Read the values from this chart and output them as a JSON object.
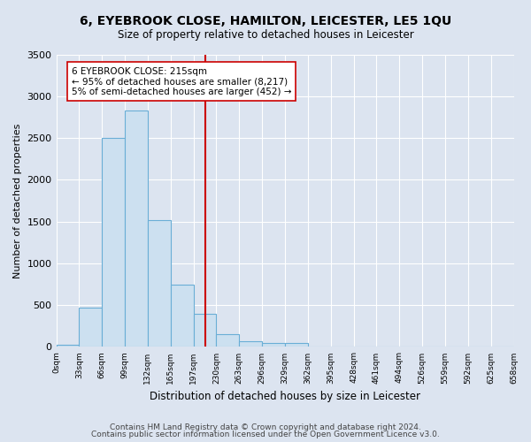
{
  "title": "6, EYEBROOK CLOSE, HAMILTON, LEICESTER, LE5 1QU",
  "subtitle": "Size of property relative to detached houses in Leicester",
  "xlabel": "Distribution of detached houses by size in Leicester",
  "ylabel": "Number of detached properties",
  "footer_line1": "Contains HM Land Registry data © Crown copyright and database right 2024.",
  "footer_line2": "Contains public sector information licensed under the Open Government Licence v3.0.",
  "bin_labels": [
    "0sqm",
    "33sqm",
    "66sqm",
    "99sqm",
    "132sqm",
    "165sqm",
    "197sqm",
    "230sqm",
    "263sqm",
    "296sqm",
    "329sqm",
    "362sqm",
    "395sqm",
    "428sqm",
    "461sqm",
    "494sqm",
    "526sqm",
    "559sqm",
    "592sqm",
    "625sqm",
    "658sqm"
  ],
  "bar_values": [
    30,
    475,
    2500,
    2830,
    1520,
    750,
    400,
    150,
    70,
    45,
    45,
    0,
    0,
    0,
    0,
    0,
    0,
    0,
    0,
    0
  ],
  "bar_color": "#cce0f0",
  "bar_edge_color": "#6aaed6",
  "vline_x": 215,
  "annotation_title": "6 EYEBROOK CLOSE: 215sqm",
  "annotation_line2": "← 95% of detached houses are smaller (8,217)",
  "annotation_line3": "5% of semi-detached houses are larger (452) →",
  "vline_color": "#cc0000",
  "annotation_box_color": "#ffffff",
  "annotation_box_edge": "#cc0000",
  "ylim": [
    0,
    3500
  ],
  "yticks": [
    0,
    500,
    1000,
    1500,
    2000,
    2500,
    3000,
    3500
  ],
  "background_color": "#dce4f0",
  "plot_background": "#dce4f0",
  "bin_width": 33,
  "n_bars": 20
}
